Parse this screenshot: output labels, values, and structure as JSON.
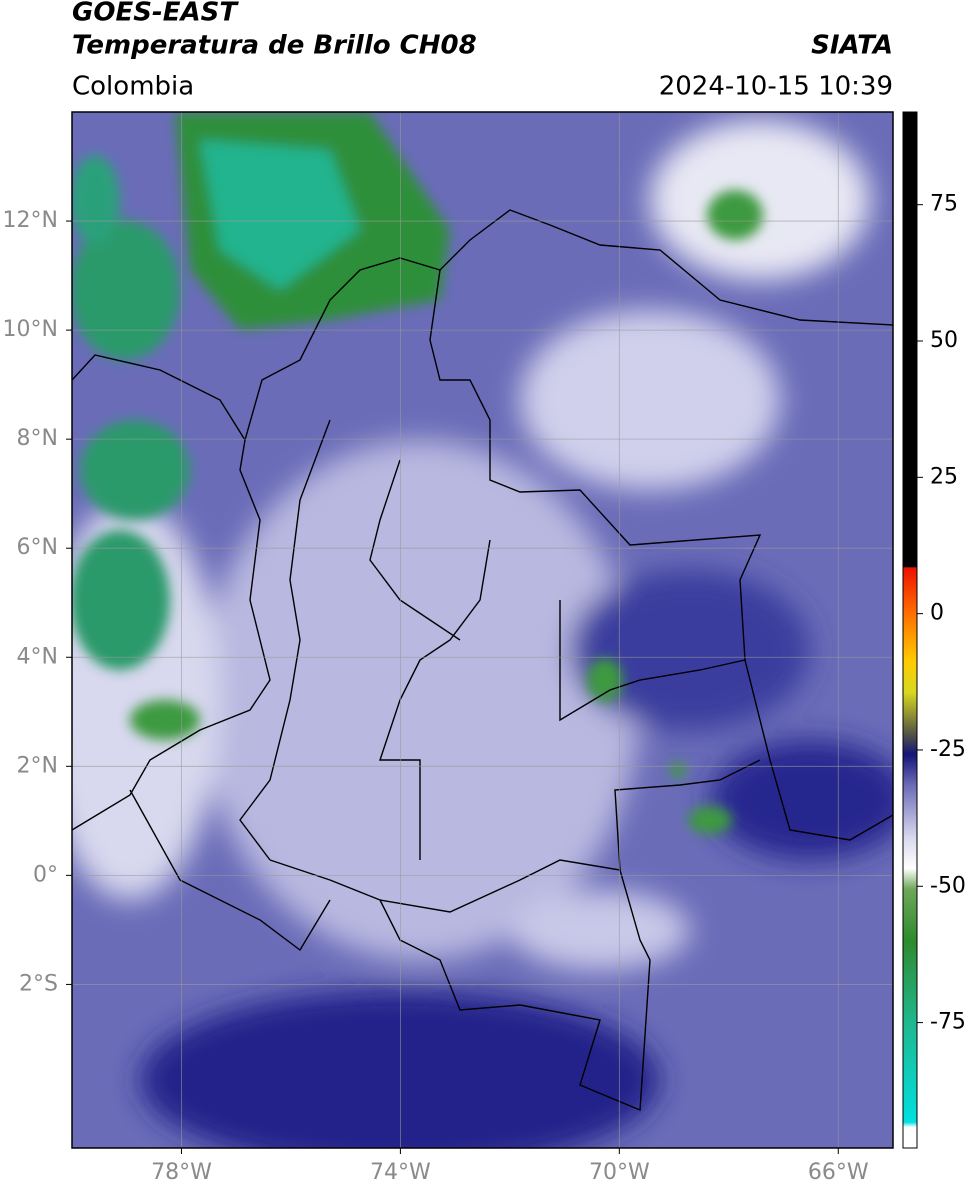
{
  "header": {
    "title": "GOES-EAST",
    "subtitle": "Temperatura de Brillo CH08",
    "region": "Colombia",
    "source": "SIATA",
    "datetime": "2024-10-15 10:39"
  },
  "map": {
    "xlim": [
      -80,
      -65
    ],
    "ylim": [
      -5,
      14
    ],
    "xticks": [
      {
        "value": -78,
        "label": "78°W"
      },
      {
        "value": -74,
        "label": "74°W"
      },
      {
        "value": -70,
        "label": "70°W"
      },
      {
        "value": -66,
        "label": "66°W"
      }
    ],
    "yticks": [
      {
        "value": 12,
        "label": "12°N"
      },
      {
        "value": 10,
        "label": "10°N"
      },
      {
        "value": 8,
        "label": "8°N"
      },
      {
        "value": 6,
        "label": "6°N"
      },
      {
        "value": 4,
        "label": "4°N"
      },
      {
        "value": 2,
        "label": "2°N"
      },
      {
        "value": 0,
        "label": "0°"
      },
      {
        "value": -2,
        "label": "2°S"
      }
    ],
    "grid": true
  },
  "colorbar": {
    "lim": [
      -98,
      92
    ],
    "ticks": [
      75,
      50,
      25,
      0,
      -25,
      -50,
      -75
    ]
  }
}
